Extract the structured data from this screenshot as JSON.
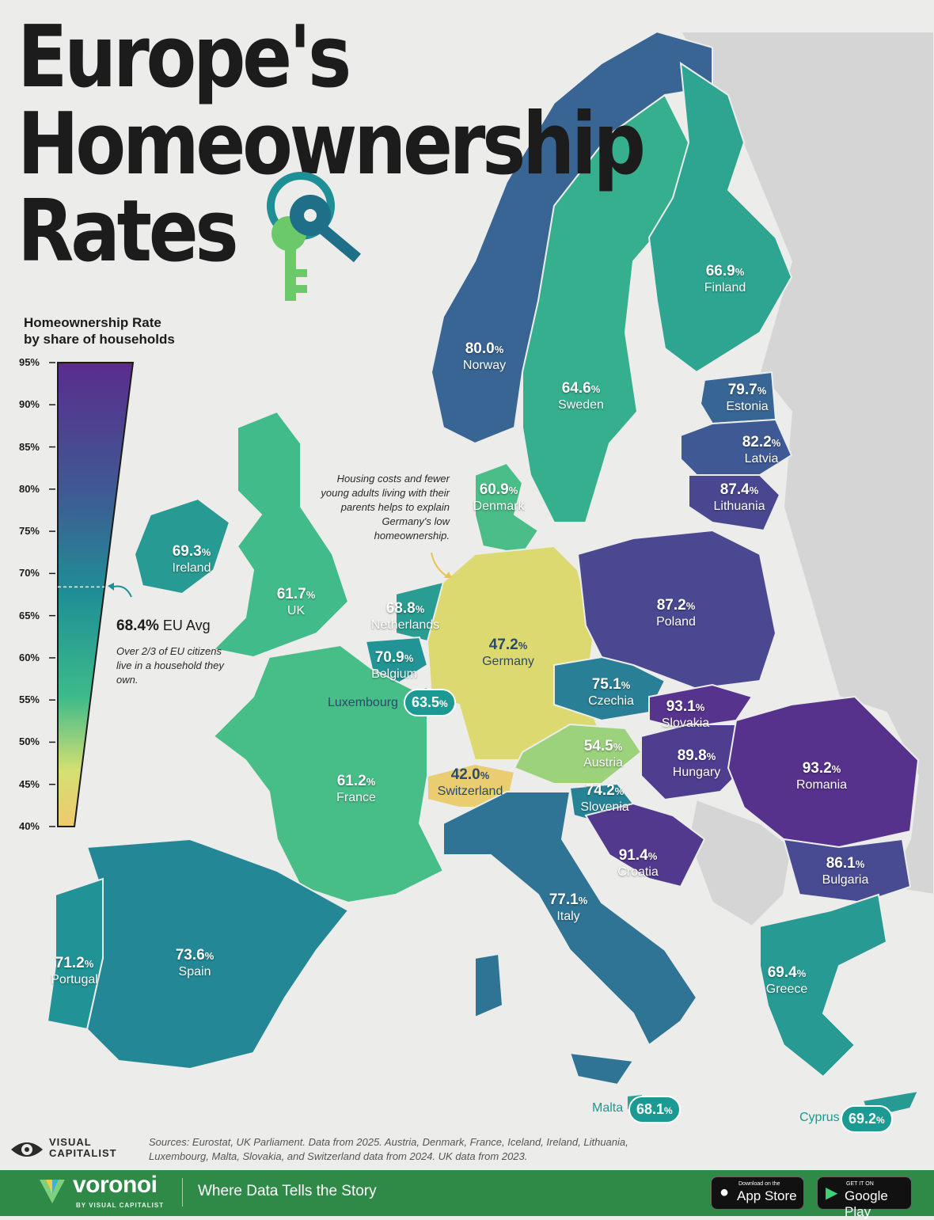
{
  "title": {
    "line1": "Europe's",
    "line2": "Homeownership",
    "line3": "Rates"
  },
  "legend": {
    "title_line1": "Homeownership Rate",
    "title_line2": "by share of households",
    "ticks": [
      "95%",
      "90%",
      "85%",
      "80%",
      "75%",
      "70%",
      "65%",
      "60%",
      "55%",
      "50%",
      "45%",
      "40%"
    ],
    "range": [
      40,
      95
    ],
    "eu_avg_value": "68.4%",
    "eu_avg_label": "EU Avg",
    "eu_avg_note": "Over 2/3 of EU citizens live in a household they own."
  },
  "germany_note": "Housing costs and fewer young adults living with their parents helps to explain Germany's low homeownership.",
  "countries": [
    {
      "name": "Norway",
      "value": 80.0
    },
    {
      "name": "Sweden",
      "value": 64.6
    },
    {
      "name": "Finland",
      "value": 66.9
    },
    {
      "name": "Estonia",
      "value": 79.7
    },
    {
      "name": "Latvia",
      "value": 82.2
    },
    {
      "name": "Lithuania",
      "value": 87.4
    },
    {
      "name": "Denmark",
      "value": 60.9
    },
    {
      "name": "Ireland",
      "value": 69.3
    },
    {
      "name": "UK",
      "value": 61.7
    },
    {
      "name": "Netherlands",
      "value": 68.8
    },
    {
      "name": "Belgium",
      "value": 70.9
    },
    {
      "name": "Luxembourg",
      "value": 63.5
    },
    {
      "name": "Germany",
      "value": 47.2
    },
    {
      "name": "Poland",
      "value": 87.2
    },
    {
      "name": "Czechia",
      "value": 75.1
    },
    {
      "name": "Slovakia",
      "value": 93.1
    },
    {
      "name": "Austria",
      "value": 54.5
    },
    {
      "name": "Hungary",
      "value": 89.8
    },
    {
      "name": "Romania",
      "value": 93.2
    },
    {
      "name": "Switzerland",
      "value": 42.0
    },
    {
      "name": "Slovenia",
      "value": 74.2
    },
    {
      "name": "France",
      "value": 61.2
    },
    {
      "name": "Croatia",
      "value": 91.4
    },
    {
      "name": "Bulgaria",
      "value": 86.1
    },
    {
      "name": "Italy",
      "value": 77.1
    },
    {
      "name": "Spain",
      "value": 73.6
    },
    {
      "name": "Portugal",
      "value": 71.2
    },
    {
      "name": "Greece",
      "value": 69.4
    },
    {
      "name": "Malta",
      "value": 68.1
    },
    {
      "name": "Cyprus",
      "value": 69.2
    }
  ],
  "labels": {
    "Norway": {
      "val": "80.0",
      "pct": "%",
      "name": "Norway"
    },
    "Sweden": {
      "val": "64.6",
      "pct": "%",
      "name": "Sweden"
    },
    "Finland": {
      "val": "66.9",
      "pct": "%",
      "name": "Finland"
    },
    "Estonia": {
      "val": "79.7",
      "pct": "%",
      "name": "Estonia"
    },
    "Latvia": {
      "val": "82.2",
      "pct": "%",
      "name": "Latvia"
    },
    "Lithuania": {
      "val": "87.4",
      "pct": "%",
      "name": "Lithuania"
    },
    "Denmark": {
      "val": "60.9",
      "pct": "%",
      "name": "Denmark"
    },
    "Ireland": {
      "val": "69.3",
      "pct": "%",
      "name": "Ireland"
    },
    "UK": {
      "val": "61.7",
      "pct": "%",
      "name": "UK"
    },
    "Netherlands": {
      "val": "68.8",
      "pct": "%",
      "name": "Netherlands"
    },
    "Belgium": {
      "val": "70.9",
      "pct": "%",
      "name": "Belgium"
    },
    "Luxembourg": {
      "val": "63.5",
      "pct": "%",
      "name": "Luxembourg"
    },
    "Germany": {
      "val": "47.2",
      "pct": "%",
      "name": "Germany"
    },
    "Poland": {
      "val": "87.2",
      "pct": "%",
      "name": "Poland"
    },
    "Czechia": {
      "val": "75.1",
      "pct": "%",
      "name": "Czechia"
    },
    "Slovakia": {
      "val": "93.1",
      "pct": "%",
      "name": "Slovakia"
    },
    "Austria": {
      "val": "54.5",
      "pct": "%",
      "name": "Austria"
    },
    "Hungary": {
      "val": "89.8",
      "pct": "%",
      "name": "Hungary"
    },
    "Romania": {
      "val": "93.2",
      "pct": "%",
      "name": "Romania"
    },
    "Switzerland": {
      "val": "42.0",
      "pct": "%",
      "name": "Switzerland"
    },
    "Slovenia": {
      "val": "74.2",
      "pct": "%",
      "name": "Slovenia"
    },
    "France": {
      "val": "61.2",
      "pct": "%",
      "name": "France"
    },
    "Croatia": {
      "val": "91.4",
      "pct": "%",
      "name": "Croatia"
    },
    "Bulgaria": {
      "val": "86.1",
      "pct": "%",
      "name": "Bulgaria"
    },
    "Italy": {
      "val": "77.1",
      "pct": "%",
      "name": "Italy"
    },
    "Spain": {
      "val": "73.6",
      "pct": "%",
      "name": "Spain"
    },
    "Portugal": {
      "val": "71.2",
      "pct": "%",
      "name": "Portugal"
    },
    "Greece": {
      "val": "69.4",
      "pct": "%",
      "name": "Greece"
    },
    "Malta": {
      "val": "68.1",
      "pct": "%",
      "name": "Malta"
    },
    "Cyprus": {
      "val": "69.2",
      "pct": "%",
      "name": "Cyprus"
    }
  },
  "colors": {
    "low": "#f0c870",
    "mid_low": "#d4e072",
    "mid": "#3dba8a",
    "mid_high": "#1f8f96",
    "high": "#3f5a94",
    "top": "#5a2c8c",
    "non_data_land": "#d5d5d5",
    "background": "#ececea"
  },
  "sources": "Sources: Eurostat, UK Parliament. Data from 2025. Austria, Denmark, France, Iceland, Ireland, Lithuania, Luxembourg, Malta, Slovakia, and Switzerland data from 2024. UK data from 2023.",
  "brand": {
    "vc_line1": "VISUAL",
    "vc_line2": "CAPITALIST",
    "voronoi": "voronoi",
    "voronoi_sub": "BY VISUAL CAPITALIST",
    "tagline": "Where Data Tells the Story",
    "appstore_small": "Download on the",
    "appstore_big": "App Store",
    "googleplay_small": "GET IT ON",
    "googleplay_big": "Google Play"
  }
}
